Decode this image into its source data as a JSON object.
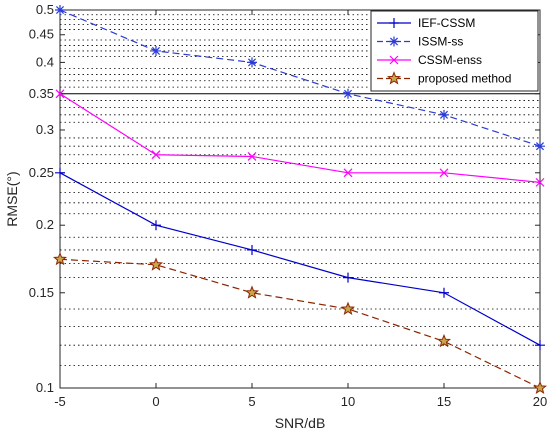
{
  "chart_data": {
    "type": "line",
    "title": "",
    "xlabel": "SNR/dB",
    "ylabel": "RMSE(°)",
    "x": [
      -5,
      0,
      5,
      10,
      15,
      20
    ],
    "xlim": [
      -5,
      20
    ],
    "ylim": [
      0.1,
      0.5
    ],
    "yscale": "log",
    "xticks": [
      -5,
      0,
      5,
      10,
      15,
      20
    ],
    "yticks": [
      0.1,
      0.15,
      0.2,
      0.25,
      0.3,
      0.35,
      0.4,
      0.45,
      0.5
    ],
    "xtick_labels": [
      "-5",
      "0",
      "5",
      "10",
      "15",
      "20"
    ],
    "ytick_labels": [
      "0.1",
      "0.15",
      "0.2",
      "0.25",
      "0.3",
      "0.35",
      "0.4",
      "0.45",
      "0.5"
    ],
    "grid": "dotted minor gridlines",
    "legend_position": "top-right",
    "series": [
      {
        "name": "IEF-CSSM",
        "values": [
          0.25,
          0.2,
          0.18,
          0.16,
          0.15,
          0.12
        ],
        "color": "#0000cc",
        "line": "solid",
        "marker": "plus"
      },
      {
        "name": "ISSM-ss",
        "values": [
          0.5,
          0.42,
          0.4,
          0.35,
          0.32,
          0.28
        ],
        "color": "#2a3bd6",
        "line": "dashed",
        "marker": "asterisk"
      },
      {
        "name": "CSSM-enss",
        "values": [
          0.35,
          0.27,
          0.268,
          0.25,
          0.25,
          0.24
        ],
        "color": "#ff00ff",
        "line": "solid",
        "marker": "x"
      },
      {
        "name": "proposed method",
        "values": [
          0.173,
          0.169,
          0.15,
          0.14,
          0.122,
          0.1
        ],
        "color": "#8b2500",
        "line": "dashed",
        "marker": "pentagram",
        "marker_fill": "#c9a64a"
      }
    ]
  }
}
